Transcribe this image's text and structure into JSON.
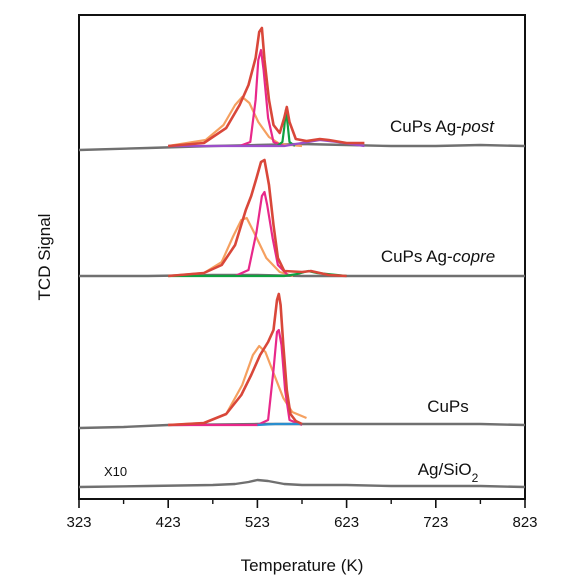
{
  "chart_data": {
    "type": "line",
    "xlabel": "Temperature (K)",
    "ylabel": "TCD Signal",
    "xlim": [
      323,
      823
    ],
    "xticks": [
      323,
      423,
      523,
      623,
      723,
      823
    ],
    "xtick_labels": [
      "323",
      "423",
      "523",
      "623",
      "723",
      "823"
    ],
    "y_ticks_shown": false,
    "grid": false,
    "panels": [
      {
        "label": "CuPs Ag-",
        "label_italic": "post",
        "baseline": [
          [
            323,
            150
          ],
          [
            400,
            148
          ],
          [
            473,
            146
          ],
          [
            523,
            145
          ],
          [
            573,
            144
          ],
          [
            623,
            145
          ],
          [
            673,
            146
          ],
          [
            723,
            146
          ],
          [
            773,
            145
          ],
          [
            823,
            146
          ]
        ],
        "measured": [
          [
            423,
            146
          ],
          [
            463,
            143
          ],
          [
            488,
            128
          ],
          [
            503,
            105
          ],
          [
            513,
            85
          ],
          [
            521,
            58
          ],
          [
            525,
            32
          ],
          [
            528,
            28
          ],
          [
            531,
            60
          ],
          [
            536,
            100
          ],
          [
            541,
            125
          ],
          [
            548,
            133
          ],
          [
            553,
            118
          ],
          [
            556,
            107
          ],
          [
            559,
            122
          ],
          [
            566,
            139
          ],
          [
            578,
            141
          ],
          [
            593,
            139
          ],
          [
            603,
            140
          ],
          [
            623,
            143
          ],
          [
            643,
            143
          ]
        ],
        "fits": [
          {
            "color": "#f5a060",
            "points": [
              [
                423,
                146
              ],
              [
                465,
                140
              ],
              [
                485,
                125
              ],
              [
                498,
                105
              ],
              [
                506,
                97
              ],
              [
                514,
                103
              ],
              [
                524,
                122
              ],
              [
                536,
                137
              ],
              [
                548,
                144
              ],
              [
                573,
                146
              ]
            ]
          },
          {
            "color": "#e8288a",
            "points": [
              [
                503,
                146
              ],
              [
                515,
                142
              ],
              [
                521,
                100
              ],
              [
                524,
                60
              ],
              [
                527,
                50
              ],
              [
                530,
                70
              ],
              [
                535,
                118
              ],
              [
                541,
                142
              ],
              [
                553,
                146
              ]
            ]
          },
          {
            "color": "#10a040",
            "points": [
              [
                545,
                146
              ],
              [
                551,
                142
              ],
              [
                553,
                128
              ],
              [
                555,
                110
              ],
              [
                557,
                125
              ],
              [
                559,
                142
              ],
              [
                565,
                146
              ]
            ]
          },
          {
            "color": "#9b4fc9",
            "points": [
              [
                423,
                146
              ],
              [
                473,
                146
              ],
              [
                553,
                146
              ],
              [
                573,
                143
              ],
              [
                593,
                140
              ],
              [
                613,
                142
              ],
              [
                643,
                146
              ]
            ]
          }
        ]
      },
      {
        "label": "CuPs Ag-",
        "label_italic": "copre",
        "baseline": [
          [
            323,
            276
          ],
          [
            400,
            276
          ],
          [
            473,
            275
          ],
          [
            523,
            275
          ],
          [
            573,
            276
          ],
          [
            623,
            276
          ],
          [
            673,
            276
          ],
          [
            723,
            276
          ],
          [
            773,
            276
          ],
          [
            823,
            276
          ]
        ],
        "measured": [
          [
            423,
            276
          ],
          [
            463,
            273
          ],
          [
            483,
            265
          ],
          [
            498,
            245
          ],
          [
            510,
            210
          ],
          [
            516,
            196
          ],
          [
            522,
            178
          ],
          [
            527,
            162
          ],
          [
            531,
            160
          ],
          [
            536,
            185
          ],
          [
            541,
            225
          ],
          [
            546,
            258
          ],
          [
            553,
            271
          ],
          [
            573,
            272
          ],
          [
            583,
            271
          ],
          [
            603,
            275
          ],
          [
            623,
            276
          ]
        ],
        "fits": [
          {
            "color": "#f5a060",
            "points": [
              [
                423,
                276
              ],
              [
                463,
                273
              ],
              [
                483,
                262
              ],
              [
                496,
                236
              ],
              [
                505,
                220
              ],
              [
                511,
                218
              ],
              [
                519,
                232
              ],
              [
                533,
                258
              ],
              [
                548,
                272
              ],
              [
                563,
                276
              ]
            ]
          },
          {
            "color": "#e8288a",
            "points": [
              [
                498,
                276
              ],
              [
                513,
                270
              ],
              [
                522,
                232
              ],
              [
                528,
                196
              ],
              [
                531,
                192
              ],
              [
                534,
                205
              ],
              [
                540,
                238
              ],
              [
                546,
                265
              ],
              [
                558,
                276
              ]
            ]
          },
          {
            "color": "#10a040",
            "points": [
              [
                423,
                276
              ],
              [
                503,
                276
              ],
              [
                553,
                276
              ],
              [
                568,
                274
              ],
              [
                580,
                271
              ],
              [
                590,
                273
              ],
              [
                623,
                276
              ]
            ]
          }
        ]
      },
      {
        "label": "CuPs",
        "label_italic": "",
        "baseline": [
          [
            323,
            428
          ],
          [
            373,
            427
          ],
          [
            423,
            425
          ],
          [
            523,
            424
          ],
          [
            573,
            424
          ],
          [
            623,
            424
          ],
          [
            673,
            424
          ],
          [
            723,
            424
          ],
          [
            773,
            424
          ],
          [
            823,
            425
          ]
        ],
        "measured": [
          [
            423,
            425
          ],
          [
            463,
            423
          ],
          [
            488,
            414
          ],
          [
            505,
            395
          ],
          [
            516,
            375
          ],
          [
            526,
            355
          ],
          [
            535,
            342
          ],
          [
            541,
            330
          ],
          [
            545,
            300
          ],
          [
            547,
            294
          ],
          [
            549,
            305
          ],
          [
            552,
            345
          ],
          [
            556,
            390
          ],
          [
            560,
            414
          ],
          [
            566,
            421
          ],
          [
            573,
            424
          ]
        ],
        "fits": [
          {
            "color": "#f5a060",
            "points": [
              [
                423,
                425
              ],
              [
                463,
                423
              ],
              [
                488,
                414
              ],
              [
                506,
                385
              ],
              [
                518,
                355
              ],
              [
                525,
                346
              ],
              [
                532,
                352
              ],
              [
                542,
                375
              ],
              [
                552,
                398
              ],
              [
                562,
                412
              ],
              [
                578,
                418
              ]
            ]
          },
          {
            "color": "#e8288a",
            "points": [
              [
                423,
                425
              ],
              [
                523,
                425
              ],
              [
                535,
                420
              ],
              [
                541,
                370
              ],
              [
                545,
                332
              ],
              [
                547,
                330
              ],
              [
                550,
                345
              ],
              [
                554,
                390
              ],
              [
                559,
                420
              ],
              [
                573,
                425
              ]
            ]
          },
          {
            "color": "#2a8ecf",
            "points": [
              [
                523,
                425
              ],
              [
                543,
                424
              ],
              [
                563,
                424
              ],
              [
                573,
                424
              ]
            ]
          }
        ]
      },
      {
        "label": "Ag/SiO",
        "label_sub": "2",
        "note": "X10",
        "baseline": [
          [
            323,
            487
          ],
          [
            400,
            486
          ],
          [
            473,
            485
          ],
          [
            498,
            484
          ],
          [
            513,
            482
          ],
          [
            523,
            480
          ],
          [
            535,
            481
          ],
          [
            553,
            484
          ],
          [
            573,
            485
          ],
          [
            623,
            485
          ],
          [
            673,
            486
          ],
          [
            723,
            486
          ],
          [
            773,
            486
          ],
          [
            823,
            487
          ]
        ],
        "measured": [],
        "fits": []
      }
    ],
    "colors": {
      "baseline": "#707070",
      "measured": "#d9473a"
    }
  }
}
